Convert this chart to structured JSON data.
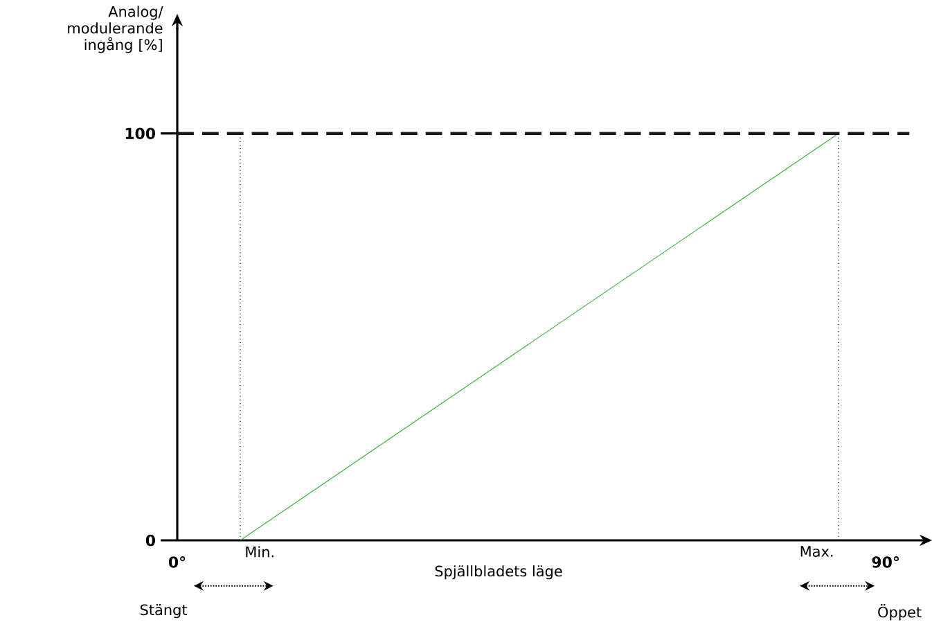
{
  "chart_data": {
    "type": "line",
    "xlabel": "Spjällbladets läge",
    "ylabel": "Analog/ modulerande ingång [%]",
    "x": [
      8,
      84
    ],
    "series": [
      {
        "color": "#3cb43c",
        "values": [
          0,
          100
        ]
      }
    ],
    "xlim": [
      0,
      95
    ],
    "ylim": [
      0,
      126
    ],
    "xticks": [
      {
        "value": 0,
        "label": "0°"
      },
      {
        "value": 90,
        "label": "90°"
      }
    ],
    "yticks": [
      0,
      100
    ],
    "ref_lines": [
      {
        "axis": "y",
        "value": 100,
        "line_style": "dashed",
        "color": "#1a1a1a"
      },
      {
        "axis": "x",
        "value": 8,
        "line_style": "dotted"
      },
      {
        "axis": "x",
        "value": 84,
        "line_style": "dotted"
      }
    ],
    "annotations": [
      {
        "text": "Min.",
        "x": 8,
        "y": 0
      },
      {
        "text": "Max.",
        "x": 84,
        "y": 0
      },
      "Stängt",
      "Öppet"
    ],
    "grid": false,
    "marker": "none",
    "line_style": "solid"
  }
}
